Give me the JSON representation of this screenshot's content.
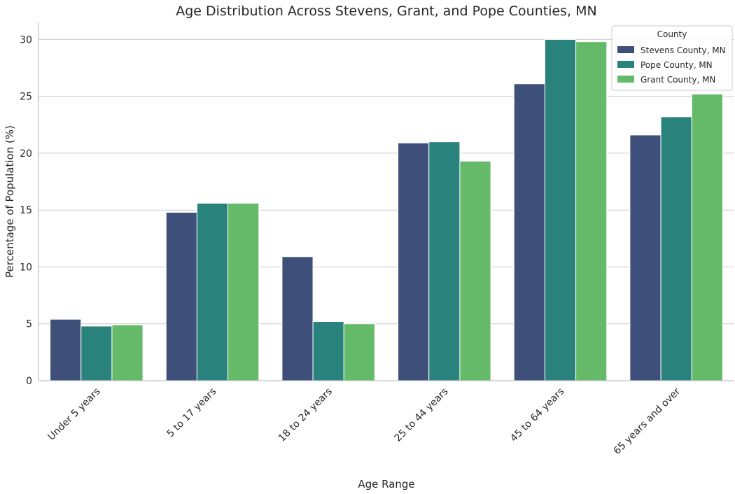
{
  "chart_data": {
    "type": "bar",
    "title": "Age Distribution Across Stevens, Grant, and Pope Counties, MN",
    "xlabel": "Age Range",
    "ylabel": "Percentage of Population (%)",
    "ylim": [
      0,
      31.5
    ],
    "yticks": [
      0,
      5,
      10,
      15,
      20,
      25,
      30
    ],
    "categories": [
      "Under 5 years",
      "5 to 17 years",
      "18 to 24 years",
      "25 to 44 years",
      "45 to 64 years",
      "65 years and over"
    ],
    "series": [
      {
        "name": "Stevens County, MN",
        "color": "#3e5079",
        "values": [
          5.4,
          14.8,
          10.9,
          20.9,
          26.1,
          21.6
        ]
      },
      {
        "name": "Pope County, MN",
        "color": "#29837c",
        "values": [
          4.8,
          15.6,
          5.2,
          21.0,
          30.0,
          23.2
        ]
      },
      {
        "name": "Grant County, MN",
        "color": "#65ba69",
        "values": [
          4.9,
          15.6,
          5.0,
          19.3,
          29.8,
          25.2
        ]
      }
    ],
    "grid": {
      "y": true,
      "x": false
    },
    "legend": {
      "title": "County",
      "placement": "top-right"
    }
  }
}
